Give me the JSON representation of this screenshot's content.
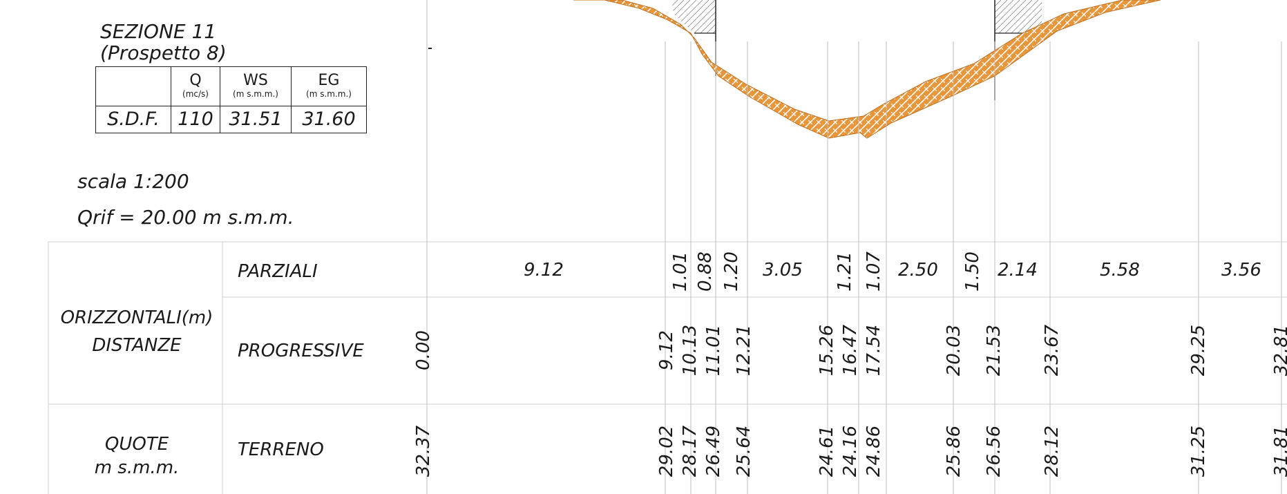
{
  "section": {
    "title_line1": "SEZIONE 11",
    "title_line2": "(Prospetto 8)"
  },
  "summary_table": {
    "headers": [
      {
        "main": "Q",
        "unit": "(mc/s)"
      },
      {
        "main": "WS",
        "unit": "(m s.m.m.)"
      },
      {
        "main": "EG",
        "unit": "(m s.m.m.)"
      }
    ],
    "row_label": "S.D.F.",
    "values": [
      "110",
      "31.51",
      "31.60"
    ]
  },
  "scale_text": "scala 1:200",
  "qrif_text": "Qrif = 20.00 m s.m.m.",
  "profile": {
    "group_horizontal_line1": "ORIZZONTALI(m)",
    "group_horizontal_line2": "DISTANZE",
    "row_partial_label": "PARZIALI",
    "row_progressive_label": "PROGRESSIVE",
    "group_elevation_line1": "QUOTE",
    "group_elevation_line2": "m s.m.m.",
    "row_ground_label": "TERRENO",
    "partials": [
      "9.12",
      "1.01",
      "0.88",
      "1.20",
      "3.05",
      "1.21",
      "1.07",
      "2.50",
      "1.50",
      "2.14",
      "5.58",
      "3.56"
    ],
    "progressives": [
      "0.00",
      "9.12",
      "10.13",
      "11.01",
      "12.21",
      "15.26",
      "16.47",
      "17.54",
      "20.03",
      "21.53",
      "23.67",
      "29.25",
      "32.81"
    ],
    "ground": [
      "32.37",
      "29.02",
      "28.17",
      "26.49",
      "25.64",
      "24.61",
      "24.16",
      "24.86",
      "25.86",
      "26.56",
      "28.12",
      "31.25",
      "31.81"
    ]
  },
  "colors": {
    "terrain_fill": "#e8963a",
    "terrain_hatch": "#ffffff",
    "line": "#222222",
    "grid": "#bdbdbd"
  }
}
